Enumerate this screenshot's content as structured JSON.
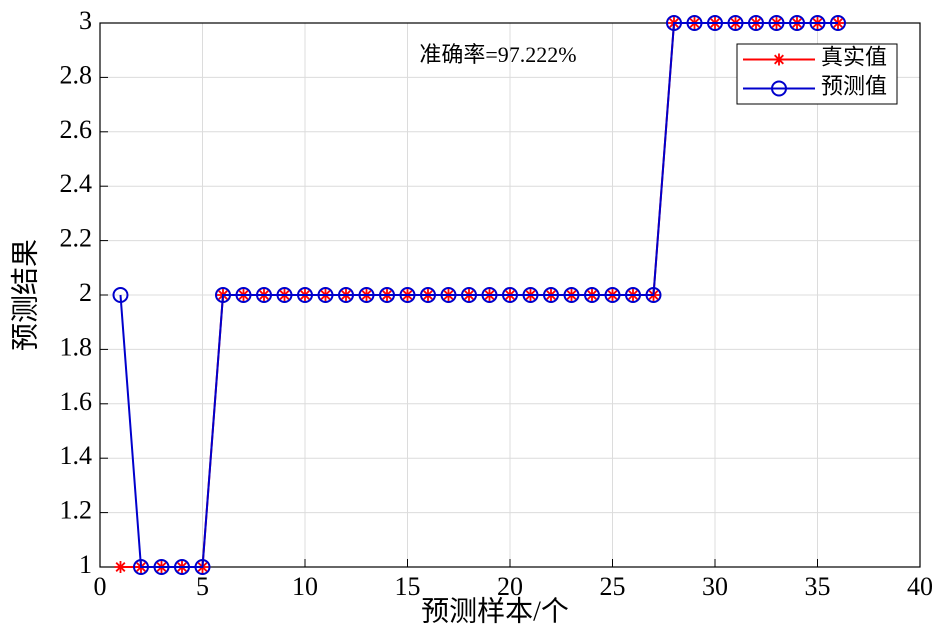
{
  "chart_data": {
    "type": "line",
    "annotation": "准确率=97.222%",
    "xlabel": "预测样本/个",
    "ylabel": "预测结果",
    "x": [
      1,
      2,
      3,
      4,
      5,
      6,
      7,
      8,
      9,
      10,
      11,
      12,
      13,
      14,
      15,
      16,
      17,
      18,
      19,
      20,
      21,
      22,
      23,
      24,
      25,
      26,
      27,
      28,
      29,
      30,
      31,
      32,
      33,
      34,
      35,
      36
    ],
    "series": [
      {
        "name": "真实值",
        "color": "#ff0000",
        "marker": "star",
        "values": [
          1,
          1,
          1,
          1,
          1,
          2,
          2,
          2,
          2,
          2,
          2,
          2,
          2,
          2,
          2,
          2,
          2,
          2,
          2,
          2,
          2,
          2,
          2,
          2,
          2,
          2,
          2,
          3,
          3,
          3,
          3,
          3,
          3,
          3,
          3,
          3
        ]
      },
      {
        "name": "预测值",
        "color": "#0000cc",
        "marker": "circle",
        "values": [
          2,
          1,
          1,
          1,
          1,
          2,
          2,
          2,
          2,
          2,
          2,
          2,
          2,
          2,
          2,
          2,
          2,
          2,
          2,
          2,
          2,
          2,
          2,
          2,
          2,
          2,
          2,
          3,
          3,
          3,
          3,
          3,
          3,
          3,
          3,
          3
        ]
      }
    ],
    "xlim": [
      0,
      40
    ],
    "xticks": [
      0,
      5,
      10,
      15,
      20,
      25,
      30,
      35,
      40
    ],
    "ylim": [
      1,
      3
    ],
    "yticks": [
      1,
      1.2,
      1.4,
      1.6,
      1.8,
      2,
      2.2,
      2.4,
      2.6,
      2.8,
      3
    ],
    "grid": true,
    "legend": "upper right"
  }
}
